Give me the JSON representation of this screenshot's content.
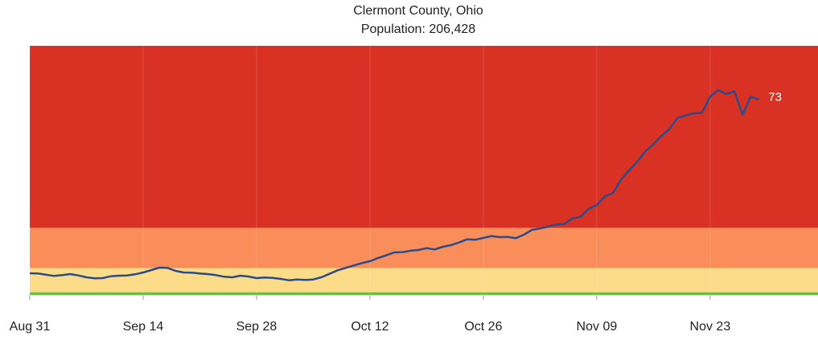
{
  "chart_data": {
    "type": "line",
    "title": "Clermont County, Ohio",
    "subtitle": "Population: 206,428",
    "categories": [
      "Aug 31",
      null,
      null,
      null,
      null,
      null,
      null,
      null,
      null,
      null,
      null,
      null,
      null,
      null,
      "Sep 14",
      null,
      null,
      null,
      null,
      null,
      null,
      null,
      null,
      null,
      null,
      null,
      null,
      null,
      "Sep 28",
      null,
      null,
      null,
      null,
      null,
      null,
      null,
      null,
      null,
      null,
      null,
      null,
      null,
      "Oct 12",
      null,
      null,
      null,
      null,
      null,
      null,
      null,
      null,
      null,
      null,
      null,
      null,
      null,
      "Oct 26",
      null,
      null,
      null,
      null,
      null,
      null,
      null,
      null,
      null,
      null,
      null,
      null,
      null,
      "Nov 09",
      null,
      null,
      null,
      null,
      null,
      null,
      null,
      null,
      null,
      null,
      null,
      null,
      null,
      "Nov 23",
      null,
      null,
      null,
      null,
      null,
      null
    ],
    "series": [
      {
        "color": "#2b4c8a",
        "values": [
          8.1,
          8.0,
          7.6,
          7.1,
          7.4,
          7.8,
          7.3,
          6.6,
          6.2,
          6.3,
          7.0,
          7.2,
          7.3,
          7.7,
          8.4,
          9.3,
          10.2,
          10.1,
          9.0,
          8.4,
          8.3,
          8.0,
          7.8,
          7.4,
          6.8,
          6.6,
          7.2,
          6.9,
          6.3,
          6.5,
          6.4,
          6.0,
          5.5,
          5.8,
          5.6,
          5.8,
          6.6,
          7.9,
          9.2,
          10.1,
          11.0,
          11.9,
          12.6,
          13.8,
          14.8,
          15.9,
          16.0,
          16.5,
          16.8,
          17.5,
          17.0,
          18.0,
          18.6,
          19.6,
          20.8,
          20.6,
          21.3,
          22.0,
          21.6,
          21.7,
          21.2,
          22.5,
          24.3,
          24.8,
          25.5,
          26.3,
          26.5,
          28.6,
          29.2,
          32.2,
          33.5,
          36.8,
          38.0,
          43.1,
          46.5,
          49.8,
          53.6,
          56.3,
          59.4,
          62.0,
          66.2,
          67.0,
          67.8,
          68.0,
          74,
          76.5,
          75,
          76,
          67.3,
          74,
          73
        ]
      }
    ],
    "ylim": [
      0,
      93
    ],
    "bands": [
      {
        "from": 25,
        "to": 93,
        "color": "#d93224"
      },
      {
        "from": 10,
        "to": 25,
        "color": "#f98e5b"
      },
      {
        "from": 1,
        "to": 10,
        "color": "#fcdc88"
      },
      {
        "from": 0,
        "to": 1,
        "color": "#6cbf4a"
      }
    ],
    "grid": true
  }
}
